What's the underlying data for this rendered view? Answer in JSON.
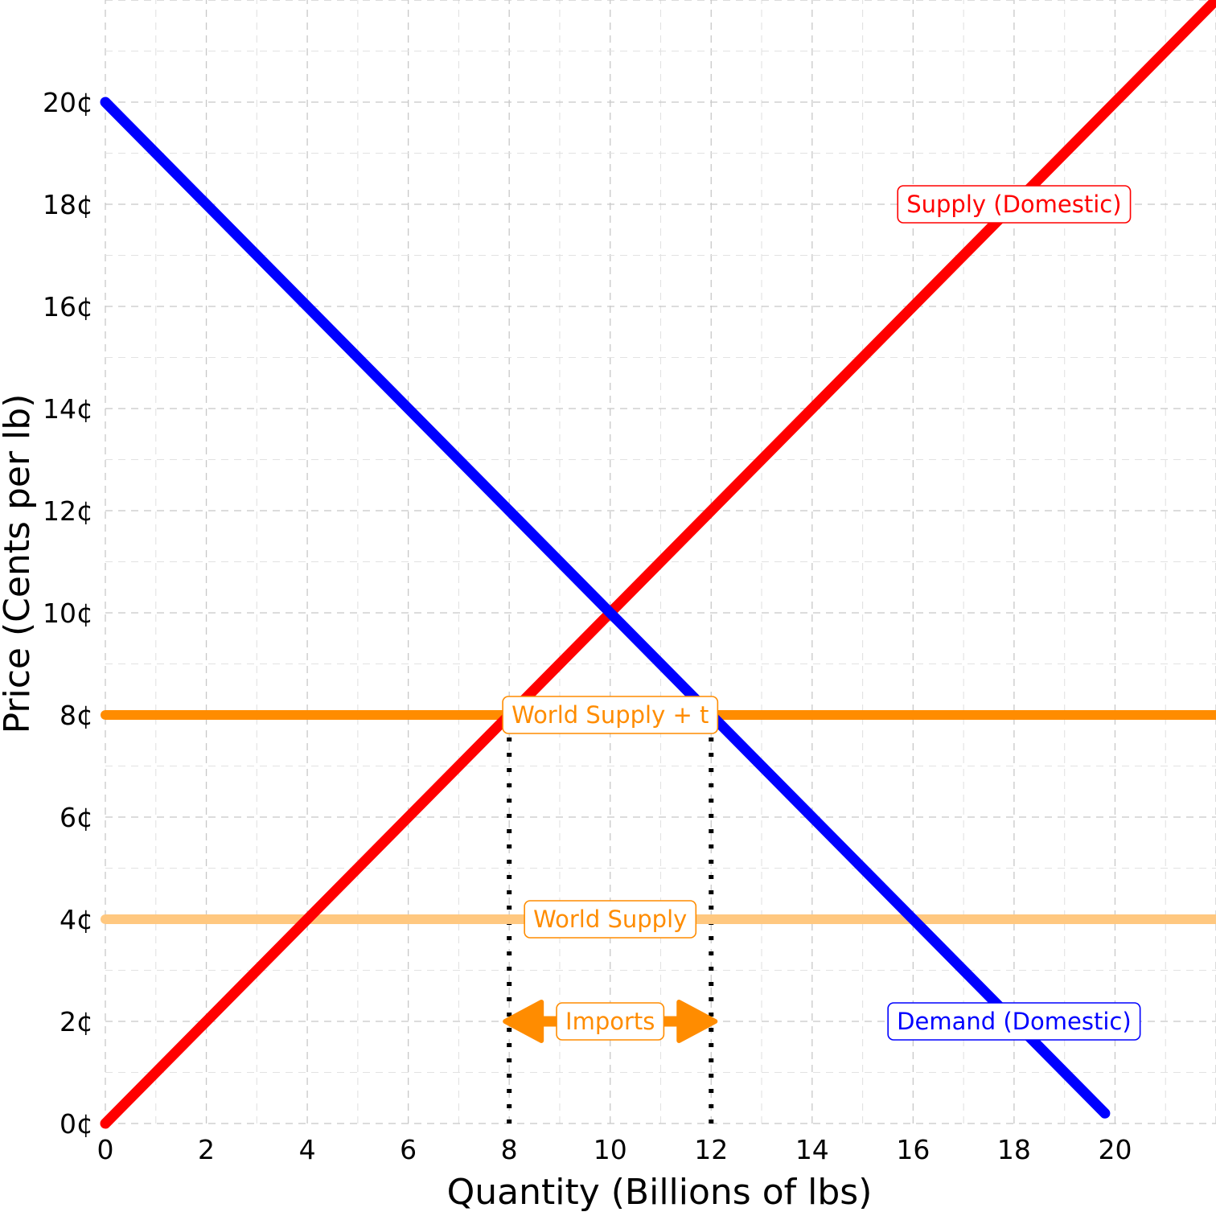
{
  "chart_data": {
    "type": "line",
    "xlabel": "Quantity (Billions of lbs)",
    "ylabel": "Price (Cents per lb)",
    "xlim": [
      0,
      22
    ],
    "ylim": [
      0,
      22
    ],
    "x_ticks": [
      0,
      2,
      4,
      6,
      8,
      10,
      12,
      14,
      16,
      18,
      20
    ],
    "x_tick_labels": [
      "0",
      "2",
      "4",
      "6",
      "8",
      "10",
      "12",
      "14",
      "16",
      "18",
      "20"
    ],
    "y_ticks": [
      0,
      2,
      4,
      6,
      8,
      10,
      12,
      14,
      16,
      18,
      20
    ],
    "y_tick_labels": [
      "0¢",
      "2¢",
      "4¢",
      "6¢",
      "8¢",
      "10¢",
      "12¢",
      "14¢",
      "16¢",
      "18¢",
      "20¢"
    ],
    "grid": true,
    "series": [
      {
        "name": "Supply (Domestic)",
        "color": "#ff0000",
        "x": [
          0,
          22
        ],
        "y": [
          0,
          22
        ],
        "label_at": [
          18,
          18
        ]
      },
      {
        "name": "Demand (Domestic)",
        "color": "#0000ff",
        "x": [
          0,
          19.8
        ],
        "y": [
          20,
          0.2
        ],
        "label_at": [
          18,
          2
        ]
      },
      {
        "name": "World Supply + t",
        "color": "#ff8c00",
        "x": [
          0,
          22
        ],
        "y": [
          8,
          8
        ],
        "label_at": [
          10,
          8
        ]
      },
      {
        "name": "World Supply",
        "color": "#ffc880",
        "label_color": "#ff8c00",
        "x": [
          0,
          22
        ],
        "y": [
          4,
          4
        ],
        "label_at": [
          10,
          4
        ]
      }
    ],
    "reference_lines": [
      {
        "x": 8,
        "y_from": 0,
        "y_to": 8,
        "style": "dotted"
      },
      {
        "x": 12,
        "y_from": 0,
        "y_to": 8,
        "style": "dotted"
      }
    ],
    "annotations": [
      {
        "text": "Imports",
        "x_from": 8,
        "x_to": 12,
        "y": 2,
        "color": "#ff8c00",
        "arrow": "both"
      }
    ]
  }
}
